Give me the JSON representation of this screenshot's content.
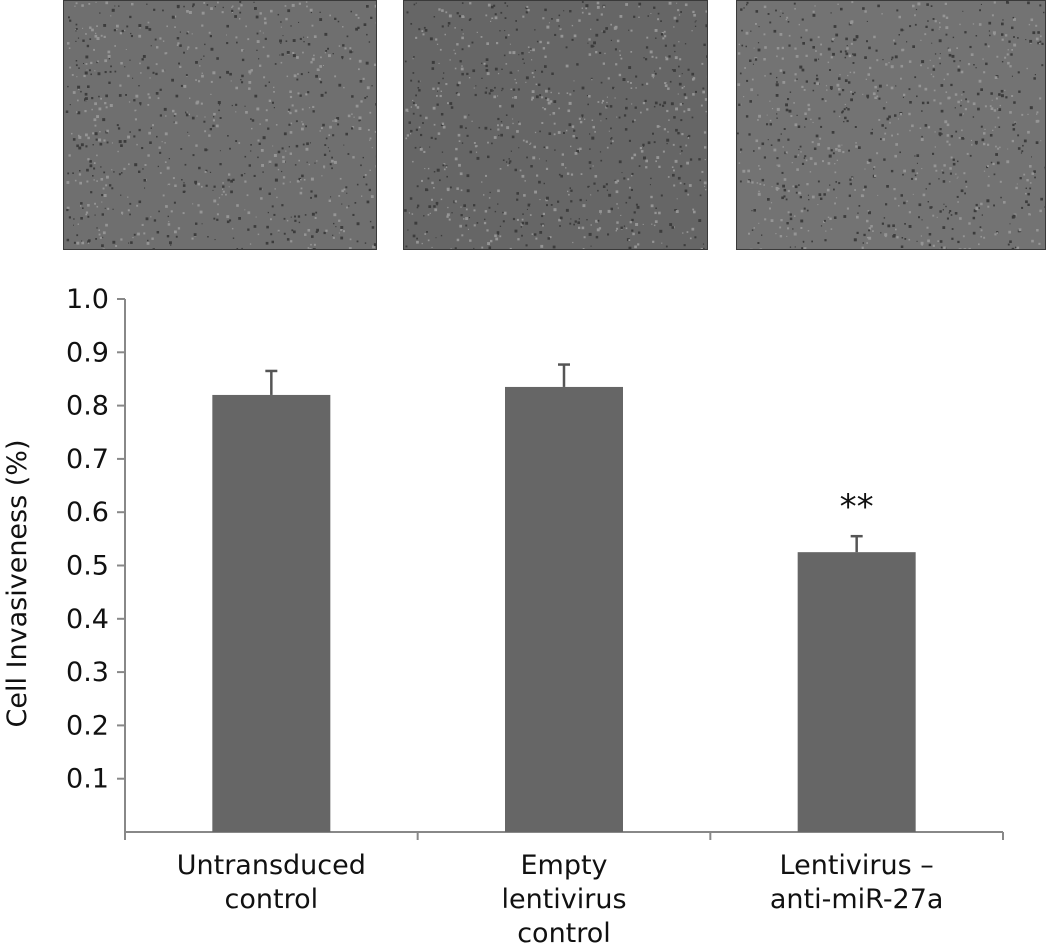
{
  "panels": [
    {
      "shade": "#6f6f6f"
    },
    {
      "shade": "#666666"
    },
    {
      "shade": "#737373"
    }
  ],
  "chart_data": {
    "type": "bar",
    "categories": [
      "Untransduced control",
      "Empty lentivirus control",
      "Lentivirus – anti-miR-27a"
    ],
    "category_lines": [
      [
        "Untransduced",
        "control"
      ],
      [
        "Empty",
        "lentivirus",
        "control"
      ],
      [
        "Lentivirus –",
        "anti-miR-27a"
      ]
    ],
    "values": [
      0.82,
      0.835,
      0.525
    ],
    "errors": [
      0.045,
      0.042,
      0.03
    ],
    "annotations": [
      "",
      "",
      "**"
    ],
    "ylabel": "Cell Invasiveness (%)",
    "ylim": [
      0,
      1.0
    ],
    "yticks": [
      "0.1",
      "0.2",
      "0.3",
      "0.4",
      "0.5",
      "0.6",
      "0.7",
      "0.8",
      "0.9",
      "1.0"
    ],
    "grid": false,
    "bar_color": "#666666"
  }
}
